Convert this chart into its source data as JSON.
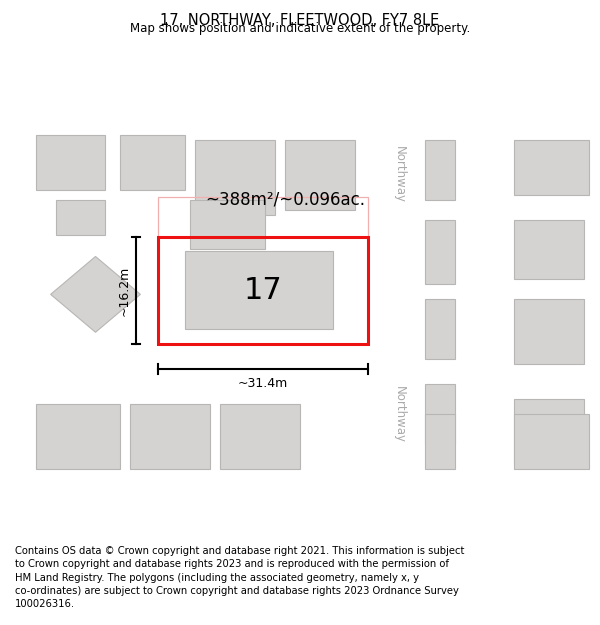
{
  "title": "17, NORTHWAY, FLEETWOOD, FY7 8LE",
  "subtitle": "Map shows position and indicative extent of the property.",
  "footer": "Contains OS data © Crown copyright and database right 2021. This information is subject\nto Crown copyright and database rights 2023 and is reproduced with the permission of\nHM Land Registry. The polygons (including the associated geometry, namely x, y\nco-ordinates) are subject to Crown copyright and database rights 2023 Ordnance Survey\n100026316.",
  "map_bg": "#eeeceb",
  "road_color": "#ffffff",
  "building_fill": "#d5d3d1",
  "building_edge": "#b8b6b4",
  "plot_outline_faint": "#f0b0b0",
  "highlight_color": "#ee1111",
  "area_text": "~388m²/~0.096ac.",
  "dim_width": "~31.4m",
  "dim_height": "~16.2m",
  "label": "17",
  "street_label": "Northway",
  "title_fontsize": 10.5,
  "subtitle_fontsize": 8.5,
  "footer_fontsize": 7.2
}
